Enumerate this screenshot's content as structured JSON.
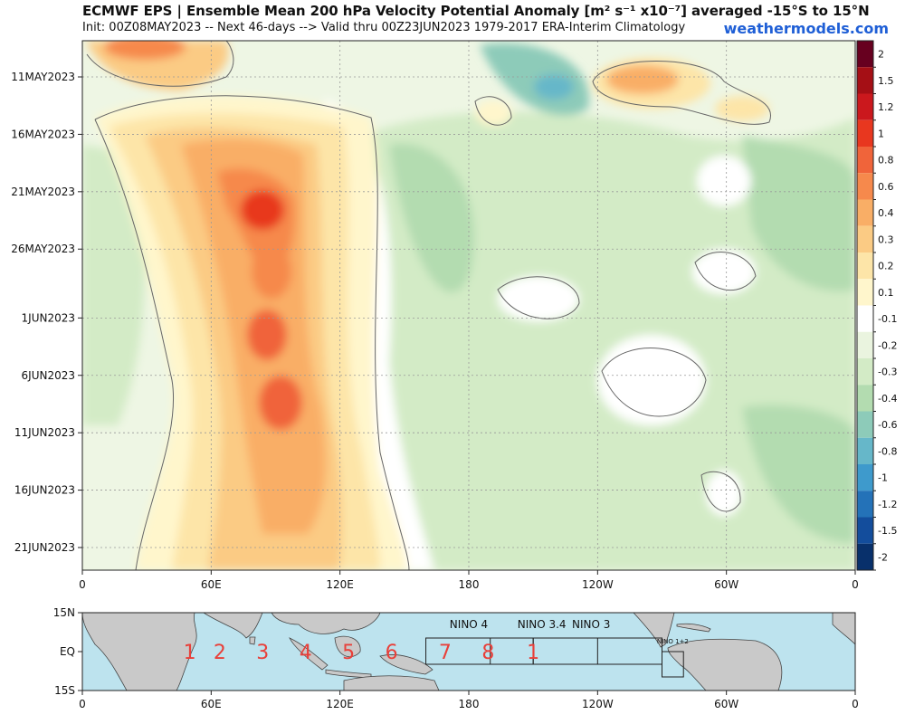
{
  "title": "ECMWF EPS | Ensemble Mean 200 hPa Velocity Potential Anomaly [m² s⁻¹ x10⁻⁷] averaged -15°S to 15°N",
  "subtitle": "Init: 00Z08MAY2023 -- Next 46-days --> Valid thru 00Z23JUN2023 1979-2017 ERA-Interim Climatology",
  "brand": "weathermodels.com",
  "chart_data": {
    "type": "heatmap",
    "chart_kind": "hovmoller",
    "y_ticks": [
      {
        "label": "11MAY2023",
        "day": 3
      },
      {
        "label": "16MAY2023",
        "day": 8
      },
      {
        "label": "21MAY2023",
        "day": 13
      },
      {
        "label": "26MAY2023",
        "day": 18
      },
      {
        "label": "1JUN2023",
        "day": 24
      },
      {
        "label": "6JUN2023",
        "day": 29
      },
      {
        "label": "11JUN2023",
        "day": 34
      },
      {
        "label": "16JUN2023",
        "day": 39
      },
      {
        "label": "21JUN2023",
        "day": 44
      }
    ],
    "x_ticks": [
      {
        "label": "0",
        "lon": 0
      },
      {
        "label": "60E",
        "lon": 60
      },
      {
        "label": "120E",
        "lon": 120
      },
      {
        "label": "180",
        "lon": 180
      },
      {
        "label": "120W",
        "lon": 240
      },
      {
        "label": "60W",
        "lon": 300
      },
      {
        "label": "0",
        "lon": 360
      }
    ],
    "colorbar": [
      {
        "label": "2",
        "color": "#67001f"
      },
      {
        "label": "1.5",
        "color": "#a50f15"
      },
      {
        "label": "1.2",
        "color": "#cb181d"
      },
      {
        "label": "1",
        "color": "#e8371f"
      },
      {
        "label": "0.8",
        "color": "#f0643a"
      },
      {
        "label": "0.6",
        "color": "#f6894c"
      },
      {
        "label": "0.4",
        "color": "#f9ae66"
      },
      {
        "label": "0.3",
        "color": "#fbcb84"
      },
      {
        "label": "0.2",
        "color": "#fde5a8"
      },
      {
        "label": "0.1",
        "color": "#fff6cc"
      },
      {
        "label": "-0.1",
        "color": "#ffffff"
      },
      {
        "label": "-0.2",
        "color": "#eaf4df"
      },
      {
        "label": "-0.3",
        "color": "#d3ebc6"
      },
      {
        "label": "-0.4",
        "color": "#b3dcb0"
      },
      {
        "label": "-0.6",
        "color": "#8dcbb9"
      },
      {
        "label": "-0.8",
        "color": "#66b7c9"
      },
      {
        "label": "-1",
        "color": "#3e9acc"
      },
      {
        "label": "-1.2",
        "color": "#2472b8"
      },
      {
        "label": "-1.5",
        "color": "#134d9c"
      },
      {
        "label": "-2",
        "color": "#08306b"
      }
    ],
    "features": [
      {
        "kind": "positive",
        "level": 1,
        "lon": 85,
        "day": 13
      },
      {
        "kind": "positive",
        "level": 0.8,
        "lon": 85,
        "day": 25
      },
      {
        "kind": "positive",
        "level": 0.8,
        "lon": 92,
        "day": 32
      },
      {
        "kind": "positive",
        "level": 0.6,
        "lon": 90,
        "day": 20
      },
      {
        "kind": "positive",
        "level": 0.8,
        "lon": 30,
        "day": 1
      },
      {
        "kind": "positive",
        "level": 0.8,
        "lon": 265,
        "day": 3
      },
      {
        "kind": "negative",
        "level": -0.8,
        "lon": 218,
        "day": 3
      },
      {
        "kind": "negative",
        "level": -0.3,
        "lon": 200,
        "day": 20
      }
    ]
  },
  "mjo_map": {
    "y_ticks": [
      "15N",
      "EQ",
      "15S"
    ],
    "x_ticks": [
      "0",
      "60E",
      "120E",
      "180",
      "120W",
      "60W",
      "0"
    ],
    "phases": [
      {
        "label": "1",
        "lon": 50
      },
      {
        "label": "2",
        "lon": 64
      },
      {
        "label": "3",
        "lon": 84
      },
      {
        "label": "4",
        "lon": 104
      },
      {
        "label": "5",
        "lon": 124
      },
      {
        "label": "6",
        "lon": 144
      },
      {
        "label": "7",
        "lon": 169
      },
      {
        "label": "8",
        "lon": 189
      },
      {
        "label": "1",
        "lon": 210
      }
    ],
    "regions": [
      {
        "label": "NINO 4",
        "lon1": 160,
        "lon2": 210
      },
      {
        "label": "NINO 3.4",
        "lon1": 190,
        "lon2": 240
      },
      {
        "label": "NINO 3",
        "lon1": 210,
        "lon2": 270
      },
      {
        "label": "NINO 1+2",
        "lon1": 270,
        "lon2": 280
      }
    ]
  }
}
